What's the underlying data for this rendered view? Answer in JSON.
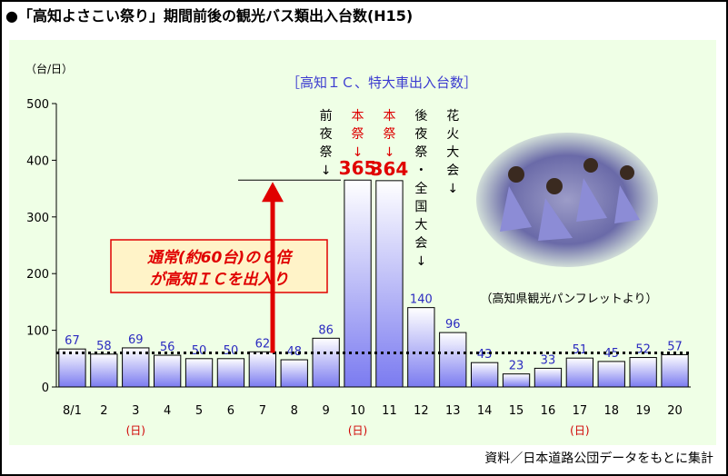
{
  "page": {
    "title": "●「高知よさこい祭り」期間前後の観光バス類出入台数(H15)",
    "source": "資料／日本道路公団データをもとに集計"
  },
  "chart_data": {
    "type": "bar",
    "title": "［高知ＩＣ、特大車出入台数］",
    "ylabel": "（台/日）",
    "ylim": [
      0,
      500
    ],
    "yticks": [
      0,
      100,
      200,
      300,
      400,
      500
    ],
    "grid": false,
    "categories": [
      "8/1",
      "2",
      "3",
      "4",
      "5",
      "6",
      "7",
      "8",
      "9",
      "10",
      "11",
      "12",
      "13",
      "14",
      "15",
      "16",
      "17",
      "18",
      "19",
      "20"
    ],
    "sub_labels": [
      "",
      "",
      "(日)",
      "",
      "",
      "",
      "",
      "",
      "",
      "(日)",
      "",
      "",
      "",
      "",
      "",
      "",
      "(日)",
      "",
      "",
      ""
    ],
    "values": [
      67,
      58,
      69,
      56,
      50,
      50,
      62,
      48,
      86,
      365,
      364,
      140,
      96,
      43,
      23,
      33,
      51,
      45,
      52,
      57
    ],
    "value_labels": [
      "67",
      "58",
      "69",
      "56",
      "50",
      "50",
      "62",
      "48",
      "86",
      "365",
      "364",
      "140",
      "96",
      "43",
      "23",
      "33",
      "51",
      "45",
      "52",
      "57"
    ],
    "highlight_indices": [
      9,
      10
    ],
    "reference_line": {
      "value": 60
    },
    "annotations": {
      "event_labels": [
        {
          "index": 8,
          "text": "前夜祭",
          "color": "#000000"
        },
        {
          "index": 9,
          "text": "本祭",
          "color": "#dd0000"
        },
        {
          "index": 10,
          "text": "本祭",
          "color": "#dd0000"
        },
        {
          "index": 11,
          "text": "後夜祭・全国大会",
          "color": "#000000"
        },
        {
          "index": 12,
          "text": "花火大会",
          "color": "#000000"
        }
      ],
      "arrow_glyph": "↓",
      "callout_lines": [
        "通常(約60台)の６倍",
        "が高知ＩＣを出入り"
      ],
      "photo_caption": "（高知県観光パンフレットより）"
    },
    "colors": {
      "bar_top": "#ffffff",
      "bar_bottom": "#7b7bf0",
      "bar_stroke": "#000000",
      "value_label": "#2b2bc0",
      "highlight_value": "#e00000",
      "event_red": "#dd0000",
      "arrow": "#e00000",
      "callout_fill": "#fff3c8",
      "callout_stroke": "#e00000",
      "callout_text": "#e00000",
      "title": "#3b3bd0",
      "subday": "#d00000",
      "panel_bg": "#efffe6"
    }
  }
}
